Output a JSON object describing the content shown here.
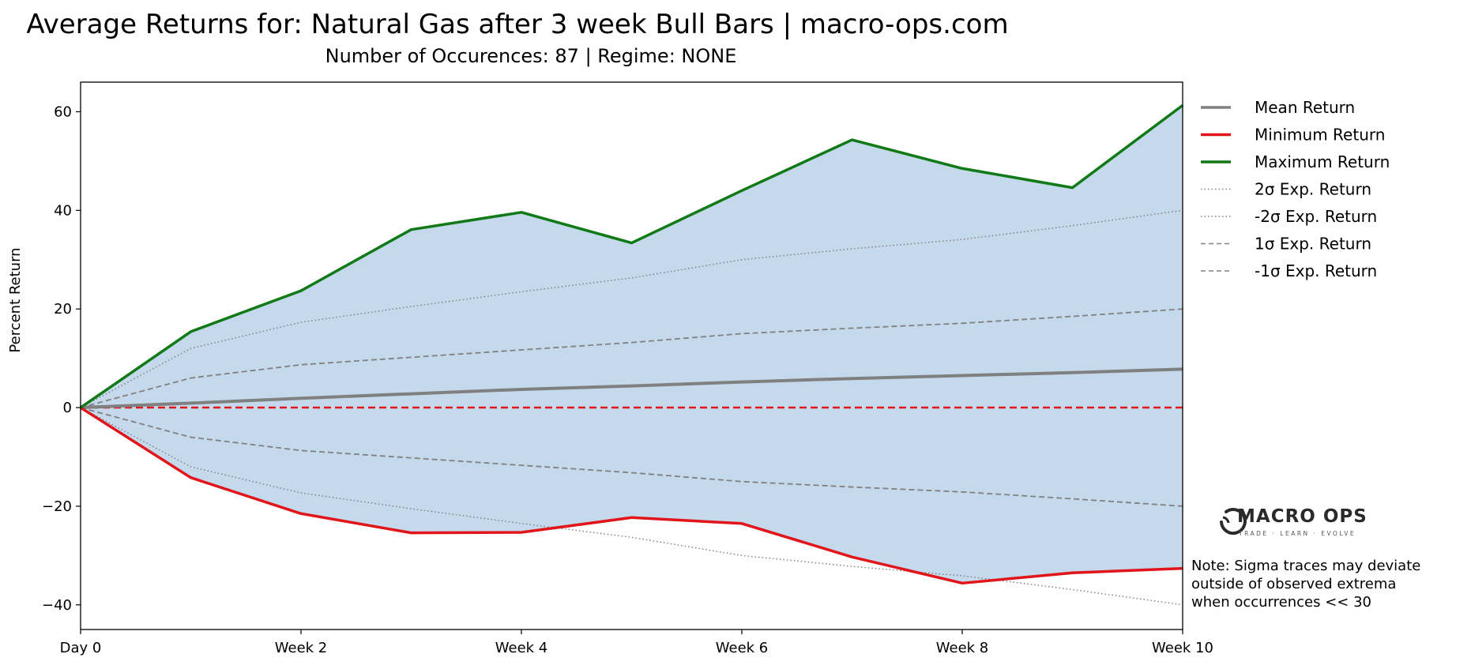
{
  "chart_data": {
    "type": "line",
    "title": "Average Returns for: Natural Gas after 3 week Bull Bars | macro-ops.com",
    "subtitle": "Number of Occurences: 87 | Regime: NONE",
    "xlabel": "",
    "ylabel": "Percent Return",
    "x": [
      0,
      1,
      2,
      3,
      4,
      5,
      6,
      7,
      8,
      9,
      10
    ],
    "xticks": [
      0,
      2,
      4,
      6,
      8,
      10
    ],
    "xtick_labels": [
      "Day 0",
      "Week 2",
      "Week 4",
      "Week 6",
      "Week 8",
      "Week 10"
    ],
    "xlim": [
      0,
      10
    ],
    "ylim": [
      -45,
      66
    ],
    "yticks": [
      -40,
      -20,
      0,
      20,
      40,
      60
    ],
    "ytick_labels": [
      "−40",
      "−20",
      "0",
      "20",
      "40",
      "60"
    ],
    "fill_between": {
      "from": "Minimum Return",
      "to": "Maximum Return",
      "color": "#c5d9ec"
    },
    "reference_line": {
      "y": 0,
      "color": "#e0161b",
      "style": "dashed"
    },
    "series": [
      {
        "name": "Mean Return",
        "color": "#808080",
        "style": "solid",
        "width": 4,
        "values": [
          0,
          0.9,
          1.9,
          2.8,
          3.7,
          4.4,
          5.2,
          5.9,
          6.5,
          7.1,
          7.8
        ]
      },
      {
        "name": "Minimum Return",
        "color": "#e0161b",
        "style": "solid",
        "width": 3.5,
        "values": [
          0,
          -14.2,
          -21.5,
          -25.4,
          -25.3,
          -22.3,
          -23.5,
          -30.3,
          -35.6,
          -33.5,
          -32.6
        ]
      },
      {
        "name": "Maximum Return",
        "color": "#117a17",
        "style": "solid",
        "width": 3.5,
        "values": [
          0,
          15.4,
          23.7,
          36.1,
          39.6,
          33.4,
          44.0,
          54.3,
          48.5,
          44.6,
          61.3
        ]
      },
      {
        "name": "2σ Exp. Return",
        "color": "#808080",
        "style": "dotted",
        "width": 1.5,
        "values": [
          0,
          12.0,
          17.3,
          20.5,
          23.5,
          26.3,
          30.0,
          32.2,
          34.1,
          36.9,
          40.0
        ]
      },
      {
        "name": "-2σ Exp. Return",
        "color": "#808080",
        "style": "dotted",
        "width": 1.5,
        "values": [
          0,
          -12.0,
          -17.3,
          -20.5,
          -23.5,
          -26.3,
          -30.0,
          -32.2,
          -34.1,
          -36.9,
          -40.0
        ]
      },
      {
        "name": "1σ Exp. Return",
        "color": "#808080",
        "style": "dashed",
        "width": 1.8,
        "values": [
          0,
          6.0,
          8.7,
          10.2,
          11.7,
          13.2,
          15.0,
          16.1,
          17.1,
          18.5,
          20.0
        ]
      },
      {
        "name": "-1σ Exp. Return",
        "color": "#808080",
        "style": "dashed",
        "width": 1.8,
        "values": [
          0,
          -6.0,
          -8.7,
          -10.2,
          -11.7,
          -13.2,
          -15.0,
          -16.1,
          -17.1,
          -18.5,
          -20.0
        ]
      }
    ],
    "legend_position": "outside-right-top"
  },
  "logo": {
    "name": "MACRO OPS",
    "tagline": "TRADE · LEARN · EVOLVE"
  },
  "note": {
    "lines": [
      "Note: Sigma traces may deviate",
      "outside of observed extrema",
      "when occurrences << 30"
    ]
  }
}
